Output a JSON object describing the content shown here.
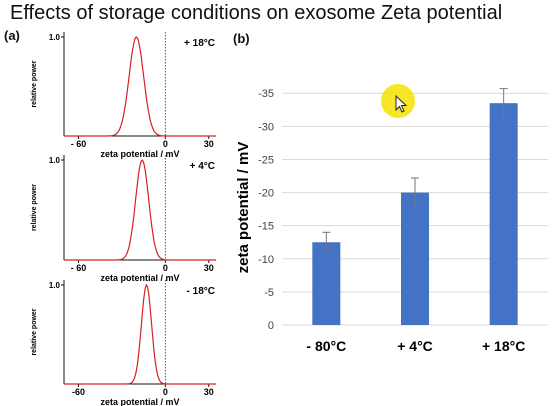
{
  "title": "Effects of storage conditions on exosome Zeta potential",
  "panel_a_label": "(a)",
  "panel_b_label": "(b)",
  "chart_data": [
    {
      "type": "line",
      "panel": "(a)",
      "condition": "+ 18°C",
      "xlabel": "zeta potential / mV",
      "ylabel": "relative power",
      "x_ticks": [
        "- 60",
        "0",
        "30"
      ],
      "y_ticks": [
        "1.0"
      ],
      "xlim": [
        -70,
        35
      ],
      "ylim": [
        0,
        1.05
      ],
      "peak_x": -20,
      "peak_width": 5,
      "grid": false
    },
    {
      "type": "line",
      "panel": "(a)",
      "condition": "+ 4°C",
      "xlabel": "zeta potential / mV",
      "ylabel": "relative power",
      "x_ticks": [
        "- 60",
        "0",
        "30"
      ],
      "y_ticks": [
        "1.0"
      ],
      "xlim": [
        -70,
        35
      ],
      "ylim": [
        0,
        1.05
      ],
      "peak_x": -16,
      "peak_width": 4.5,
      "grid": false
    },
    {
      "type": "line",
      "panel": "(a)",
      "condition": "- 18°C",
      "xlabel": "zeta potential / mV",
      "ylabel": "relative power",
      "x_ticks": [
        "-60",
        "0",
        "30"
      ],
      "y_ticks": [
        "1.0"
      ],
      "xlim": [
        -70,
        35
      ],
      "ylim": [
        0,
        1.05
      ],
      "peak_x": -13,
      "peak_width": 3.5,
      "grid": false
    },
    {
      "type": "bar",
      "panel": "(b)",
      "categories": [
        "- 80°C",
        "+ 4°C",
        "+ 18°C"
      ],
      "values": [
        -12.5,
        -20,
        -33.5
      ],
      "errors": [
        1.5,
        2.2,
        2.2
      ],
      "ylabel": "zeta potential / mV",
      "y_ticks": [
        "-35",
        "-30",
        "-25",
        "-20",
        "-15",
        "-10",
        "-5",
        "0"
      ],
      "ylim": [
        0,
        -37
      ],
      "bar_color": "#4472c4",
      "grid": true
    }
  ]
}
